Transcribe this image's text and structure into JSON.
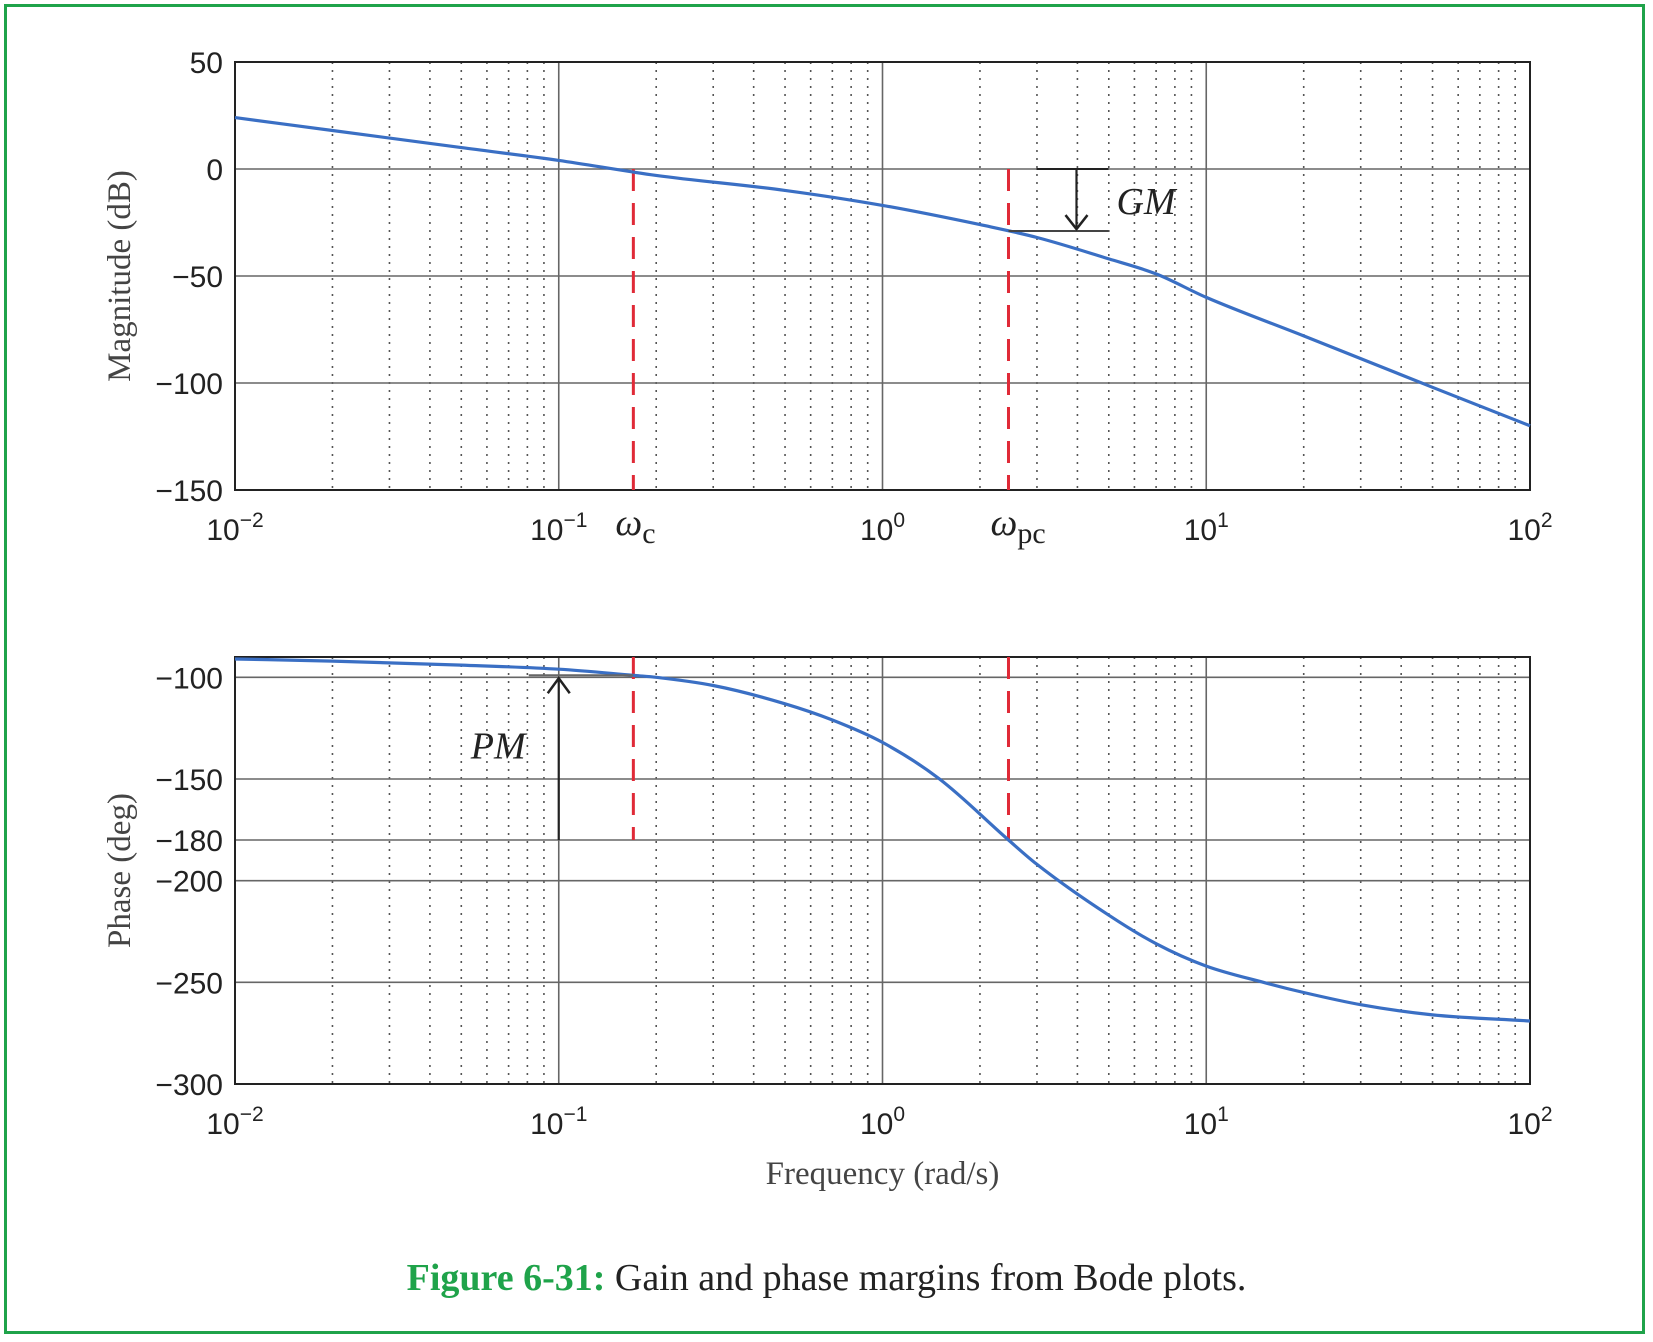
{
  "chart_data": [
    {
      "type": "line",
      "ylabel": "Magnitude (dB)",
      "xscale": "log",
      "xlim": [
        0.01,
        100
      ],
      "ylim": [
        -150,
        50
      ],
      "yticks": [
        -150,
        -100,
        -50,
        0,
        50
      ],
      "ytick_labels": [
        "−150",
        "−100",
        "−50",
        "0",
        "50"
      ],
      "xtick_labels": [
        {
          "base": "10",
          "exp": "−2"
        },
        {
          "base": "10",
          "exp": "−1"
        },
        {
          "base": "10",
          "exp": "0"
        },
        {
          "base": "10",
          "exp": "1"
        },
        {
          "base": "10",
          "exp": "2"
        }
      ],
      "grid": true,
      "series": [
        {
          "color": "#3a6fc4",
          "x": [
            0.01,
            0.02,
            0.05,
            0.1,
            0.2,
            0.5,
            1,
            2,
            3,
            5,
            7,
            10,
            20,
            50,
            100
          ],
          "y": [
            24,
            18,
            10,
            4,
            -3,
            -10,
            -17,
            -26,
            -32,
            -42,
            -49,
            -60,
            -78,
            -102,
            -120
          ]
        }
      ],
      "markers": {
        "omega_c": 0.17,
        "omega_pc": 2.45,
        "gm_db": -29,
        "color": "#e02a37"
      },
      "annotations": {
        "omega_c": {
          "sym": "ω",
          "sub": "c"
        },
        "omega_pc": {
          "sym": "ω",
          "sub": "pc"
        },
        "gm": "GM"
      }
    },
    {
      "type": "line",
      "xlabel": "Frequency (rad/s)",
      "ylabel": "Phase (deg)",
      "xscale": "log",
      "xlim": [
        0.01,
        100
      ],
      "ylim": [
        -300,
        -90
      ],
      "yticks": [
        -300,
        -250,
        -200,
        -180,
        -150,
        -100
      ],
      "ytick_labels": [
        "−300",
        "−250",
        "−200",
        "−180",
        "−150",
        "−100"
      ],
      "xtick_labels": [
        {
          "base": "10",
          "exp": "−2"
        },
        {
          "base": "10",
          "exp": "−1"
        },
        {
          "base": "10",
          "exp": "0"
        },
        {
          "base": "10",
          "exp": "1"
        },
        {
          "base": "10",
          "exp": "2"
        }
      ],
      "grid": true,
      "series": [
        {
          "color": "#3a6fc4",
          "x": [
            0.01,
            0.02,
            0.05,
            0.1,
            0.17,
            0.2,
            0.3,
            0.5,
            0.7,
            1,
            1.5,
            2.45,
            3,
            5,
            7,
            10,
            15,
            20,
            30,
            50,
            100
          ],
          "y": [
            -91,
            -92,
            -94,
            -96,
            -99,
            -100,
            -104,
            -113,
            -121,
            -132,
            -150,
            -180,
            -192,
            -217,
            -231,
            -242,
            -250,
            -255,
            -261,
            -266,
            -269
          ]
        }
      ],
      "markers": {
        "omega_c": 0.17,
        "omega_pc": 2.45,
        "pm_deg": -99,
        "pm_x": 0.1,
        "color": "#e02a37"
      },
      "annotations": {
        "pm": "PM"
      }
    }
  ],
  "caption": {
    "label": "Figure 6-31:",
    "text": " Gain and phase margins from Bode plots."
  }
}
